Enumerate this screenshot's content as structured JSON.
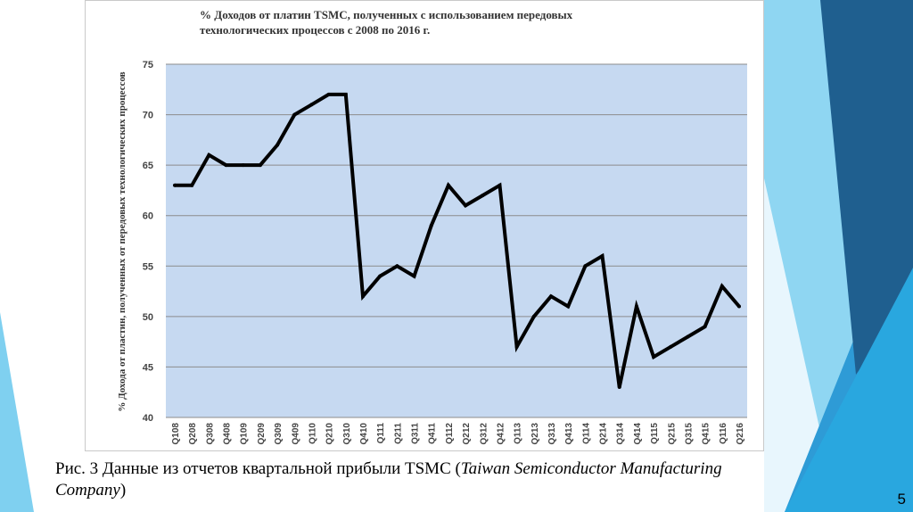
{
  "slide": {
    "page_number": "5",
    "caption": {
      "prefix": "Рис. 3 Данные из отчетов квартальной прибыли TSMC (",
      "company_line1": "Taiwan Semiconductor Manufacturing",
      "company_line2": "Company",
      "suffix": ")"
    },
    "theme_colors": {
      "accent_dark": "#1f5f8f",
      "accent_mid": "#2e9bd6",
      "accent_light": "#7fd0f0",
      "plot_fill": "#c6d9f1",
      "line": "#000000"
    }
  },
  "chart_data": {
    "type": "line",
    "title_line1": "% Доходов от платин TSMC, полученных с использованием передовых",
    "title_line2": "технологических процессов с 2008 по 2016 г.",
    "xlabel": "",
    "ylabel": "% Дохода от пластин, полученных от передовых технологических процессов",
    "ylim": [
      40,
      75
    ],
    "yticks": [
      40,
      45,
      50,
      55,
      60,
      65,
      70,
      75
    ],
    "grid": true,
    "categories": [
      "Q108",
      "Q208",
      "Q308",
      "Q408",
      "Q109",
      "Q209",
      "Q309",
      "Q409",
      "Q110",
      "Q210",
      "Q310",
      "Q410",
      "Q111",
      "Q211",
      "Q311",
      "Q411",
      "Q112",
      "Q212",
      "Q312",
      "Q412",
      "Q113",
      "Q213",
      "Q313",
      "Q413",
      "Q114",
      "Q214",
      "Q314",
      "Q414",
      "Q115",
      "Q215",
      "Q315",
      "Q415",
      "Q116",
      "Q216"
    ],
    "series": [
      {
        "values": [
          63,
          63,
          66,
          65,
          65,
          65,
          67,
          70,
          71,
          72,
          72,
          52,
          54,
          55,
          54,
          59,
          63,
          61,
          62,
          63,
          47,
          50,
          52,
          51,
          55,
          56,
          43,
          51,
          46,
          47,
          48,
          49,
          53,
          51
        ]
      }
    ]
  }
}
